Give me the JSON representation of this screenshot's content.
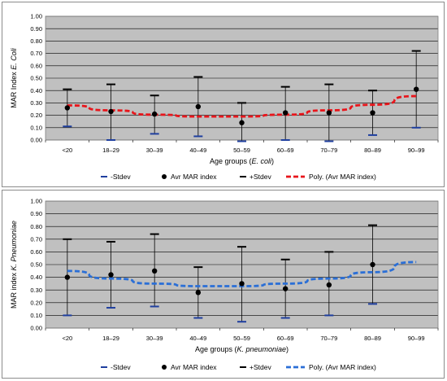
{
  "chart_data": [
    {
      "type": "scatter",
      "ylabel_prefix": "MAR Index ",
      "ylabel_italic": "E. Coli",
      "xlabel_prefix": "Age groups (",
      "xlabel_italic": "E. coli",
      "xlabel_suffix": ")",
      "categories": [
        "<20",
        "18–29",
        "30–39",
        "40–49",
        "50–59",
        "60–69",
        "70–79",
        "80–89",
        "90–99"
      ],
      "ylim": [
        0,
        1.0
      ],
      "yticks": [
        "0.00",
        "0.10",
        "0.20",
        "0.30",
        "0.40",
        "0.50",
        "0.60",
        "0.70",
        "0.80",
        "0.90",
        "1.00"
      ],
      "grid": true,
      "legend_position": "bottom",
      "series": [
        {
          "name": "-Stdev",
          "values": [
            0.11,
            0.0,
            0.05,
            0.03,
            -0.01,
            0.0,
            -0.01,
            0.04,
            0.1
          ],
          "color": "#1f3f9f"
        },
        {
          "name": "Avr MAR index",
          "values": [
            0.26,
            0.23,
            0.21,
            0.27,
            0.14,
            0.22,
            0.22,
            0.22,
            0.41
          ],
          "color": "#000000"
        },
        {
          "name": "+Stdev",
          "values": [
            0.41,
            0.45,
            0.36,
            0.51,
            0.3,
            0.43,
            0.45,
            0.4,
            0.72
          ],
          "color": "#000000"
        },
        {
          "name": "Poly. (Avr MAR index)",
          "values": [
            0.28,
            0.24,
            0.205,
            0.19,
            0.19,
            0.205,
            0.24,
            0.285,
            0.355
          ],
          "color": "#e8151b"
        }
      ]
    },
    {
      "type": "scatter",
      "ylabel_prefix": "MAR index ",
      "ylabel_italic": "K. Pneumoniae",
      "xlabel_prefix": "Age groups (",
      "xlabel_italic": "K. pneumoniae",
      "xlabel_suffix": ")",
      "categories": [
        "<20",
        "18–29",
        "30–39",
        "40–49",
        "50–59",
        "60–69",
        "70–79",
        "80–89",
        "90–99"
      ],
      "ylim": [
        0,
        1.0
      ],
      "yticks": [
        "0.00",
        "0.10",
        "0.20",
        "0.30",
        "0.40",
        "0.50",
        "0.60",
        "0.70",
        "0.80",
        "0.90",
        "1.00"
      ],
      "grid": true,
      "legend_position": "bottom",
      "series": [
        {
          "name": "-Stdev",
          "values": [
            0.1,
            0.16,
            0.17,
            0.08,
            0.05,
            0.08,
            0.1,
            0.19,
            null
          ],
          "color": "#1f3f9f"
        },
        {
          "name": "Avr MAR index",
          "values": [
            0.4,
            0.42,
            0.45,
            0.28,
            0.35,
            0.31,
            0.34,
            0.5,
            null
          ],
          "color": "#000000"
        },
        {
          "name": "+Stdev",
          "values": [
            0.7,
            0.68,
            0.74,
            0.48,
            0.64,
            0.54,
            0.6,
            0.81,
            null
          ],
          "color": "#000000"
        },
        {
          "name": "Poly. (Avr MAR index)",
          "values": [
            0.45,
            0.39,
            0.35,
            0.33,
            0.33,
            0.35,
            0.39,
            0.44,
            0.52
          ],
          "color": "#2b6fd6"
        }
      ]
    }
  ]
}
